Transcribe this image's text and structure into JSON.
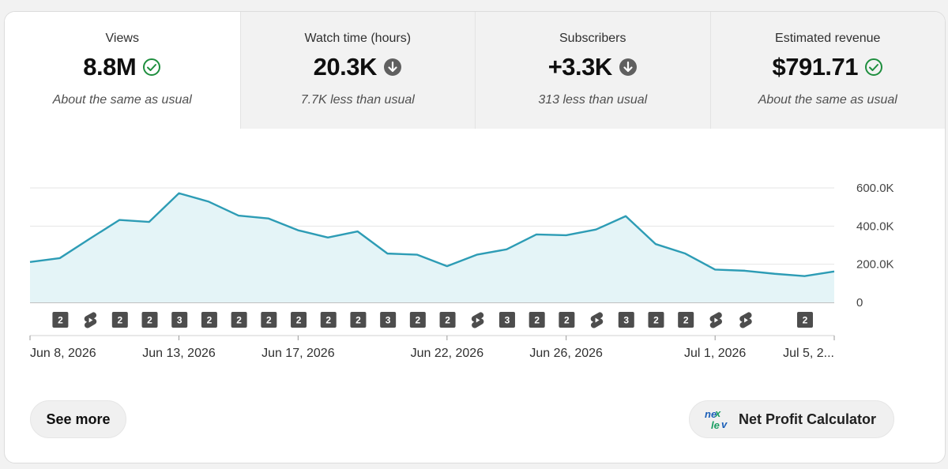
{
  "metrics": [
    {
      "label": "Views",
      "value": "8.8M",
      "status_icon": "check-circle-icon",
      "comparison": "About the same as usual",
      "active": true
    },
    {
      "label": "Watch time (hours)",
      "value": "20.3K",
      "status_icon": "arrow-down-circle-icon",
      "comparison": "7.7K less than usual",
      "active": false
    },
    {
      "label": "Subscribers",
      "value": "+3.3K",
      "status_icon": "arrow-down-circle-icon",
      "comparison": "313 less than usual",
      "active": false
    },
    {
      "label": "Estimated revenue",
      "value": "$791.71",
      "status_icon": "check-circle-icon",
      "comparison": "About the same as usual",
      "active": false
    }
  ],
  "colors": {
    "line": "#2d9cb5",
    "area": "#e4f4f7",
    "check": "#1e8e3e",
    "down_icon": "#606060",
    "badge": "#4d4d4d",
    "grid": "#e5e5e5"
  },
  "chart_data": {
    "type": "area",
    "metric": "Views",
    "x": [
      "Jun 8",
      "Jun 9",
      "Jun 10",
      "Jun 11",
      "Jun 12",
      "Jun 13",
      "Jun 14",
      "Jun 15",
      "Jun 16",
      "Jun 17",
      "Jun 18",
      "Jun 19",
      "Jun 20",
      "Jun 21",
      "Jun 22",
      "Jun 23",
      "Jun 24",
      "Jun 25",
      "Jun 26",
      "Jun 27",
      "Jun 28",
      "Jun 29",
      "Jun 30",
      "Jul 1",
      "Jul 2",
      "Jul 3",
      "Jul 4",
      "Jul 5"
    ],
    "values": [
      212000,
      232000,
      333000,
      432000,
      422000,
      572000,
      528000,
      455000,
      440000,
      378000,
      340000,
      372000,
      256000,
      250000,
      190000,
      250000,
      278000,
      356000,
      352000,
      382000,
      452000,
      306000,
      256000,
      172000,
      166000,
      150000,
      138000,
      162000
    ],
    "y_ticks": [
      "0",
      "200.0K",
      "400.0K",
      "600.0K"
    ],
    "y_tick_values": [
      0,
      200000,
      400000,
      600000
    ],
    "ylim": [
      0,
      600000
    ],
    "x_tick_labels": [
      {
        "index": 0,
        "label": "Jun 8, 2026"
      },
      {
        "index": 5,
        "label": "Jun 13, 2026"
      },
      {
        "index": 9,
        "label": "Jun 17, 2026"
      },
      {
        "index": 14,
        "label": "Jun 22, 2026"
      },
      {
        "index": 18,
        "label": "Jun 26, 2026"
      },
      {
        "index": 23,
        "label": "Jul 1, 2026"
      },
      {
        "index": 27,
        "label": "Jul 5, 2..."
      }
    ],
    "grid": true,
    "publish_markers": [
      {
        "index": 2,
        "type": "count",
        "text": "2"
      },
      {
        "index": 3,
        "type": "shorts"
      },
      {
        "index": 4,
        "type": "count",
        "text": "2"
      },
      {
        "index": 5,
        "type": "count",
        "text": "2"
      },
      {
        "index": 6,
        "type": "count",
        "text": "3"
      },
      {
        "index": 7,
        "type": "count",
        "text": "2"
      },
      {
        "index": 8,
        "type": "count",
        "text": "2"
      },
      {
        "index": 9,
        "type": "count",
        "text": "2"
      },
      {
        "index": 10,
        "type": "count",
        "text": "2"
      },
      {
        "index": 11,
        "type": "count",
        "text": "2"
      },
      {
        "index": 12,
        "type": "count",
        "text": "2"
      },
      {
        "index": 13,
        "type": "count",
        "text": "3"
      },
      {
        "index": 14,
        "type": "count",
        "text": "2"
      },
      {
        "index": 15,
        "type": "count",
        "text": "2"
      },
      {
        "index": 16,
        "type": "shorts"
      },
      {
        "index": 17,
        "type": "count",
        "text": "3"
      },
      {
        "index": 18,
        "type": "count",
        "text": "2"
      },
      {
        "index": 19,
        "type": "count",
        "text": "2"
      },
      {
        "index": 20,
        "type": "shorts"
      },
      {
        "index": 21,
        "type": "count",
        "text": "3"
      },
      {
        "index": 22,
        "type": "count",
        "text": "2"
      },
      {
        "index": 23,
        "type": "count",
        "text": "2"
      },
      {
        "index": 24,
        "type": "shorts"
      },
      {
        "index": 25,
        "type": "shorts"
      },
      {
        "index": 27,
        "type": "count",
        "text": "2"
      }
    ]
  },
  "footer": {
    "see_more_label": "See more",
    "calculator_label": "Net Profit Calculator",
    "calculator_icon": "nexlev-logo-icon"
  }
}
